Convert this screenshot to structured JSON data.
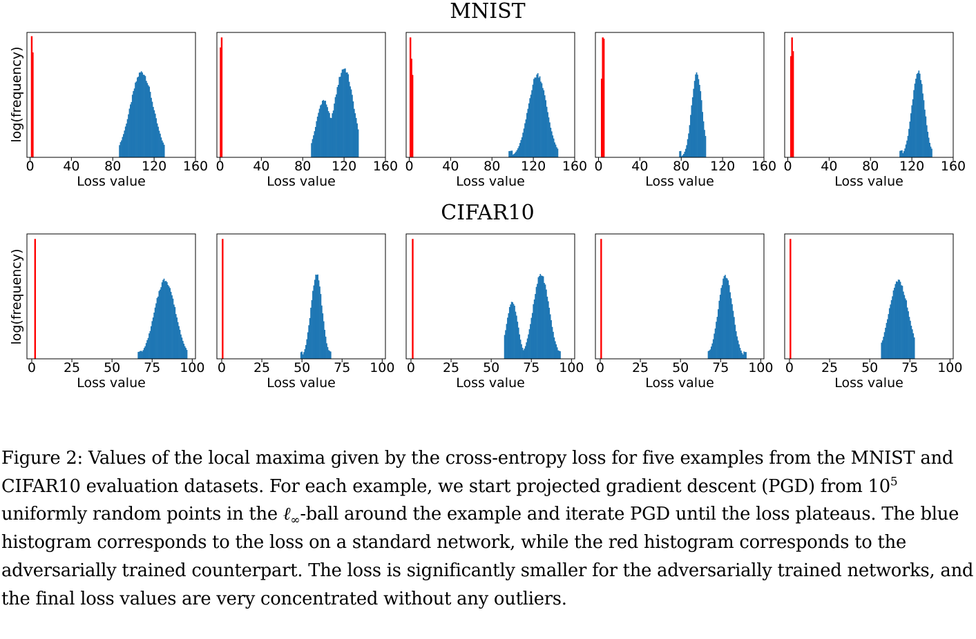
{
  "chart_data": [
    {
      "type": "bar",
      "row_title": "MNIST",
      "xlabel": "Loss value",
      "ylabel": "log(frequency)",
      "xlim": [
        -3,
        160
      ],
      "xticks": [
        0,
        40,
        80,
        120,
        160
      ],
      "panels": [
        {
          "standard": {
            "shape": "single",
            "peak": 108,
            "sd": 11,
            "min": 86,
            "max": 130,
            "height": 0.69
          },
          "adversarial": [
            {
              "x": 1.5,
              "h": 0.97
            },
            {
              "x": 2.5,
              "h": 0.84
            }
          ]
        },
        {
          "standard": {
            "shape": "double",
            "peak": 120,
            "peak2": 100,
            "sd": 9,
            "sd2": 7,
            "h2": 0.63,
            "min": 88,
            "max": 134,
            "height": 0.72
          },
          "adversarial": [
            {
              "x": 0.5,
              "h": 0.88
            },
            {
              "x": 1.5,
              "h": 0.96
            }
          ]
        },
        {
          "standard": {
            "shape": "single",
            "peak": 124,
            "sd": 9,
            "min": 96,
            "max": 144,
            "height": 0.67
          },
          "adversarial": [
            {
              "x": 1,
              "h": 0.96
            },
            {
              "x": 2,
              "h": 0.79
            },
            {
              "x": 3,
              "h": 0.66
            }
          ]
        },
        {
          "standard": {
            "shape": "single",
            "peak": 95,
            "sd": 5,
            "min": 78,
            "max": 104,
            "height": 0.69
          },
          "adversarial": [
            {
              "x": 3,
              "h": 0.63
            },
            {
              "x": 4,
              "h": 0.96
            },
            {
              "x": 5,
              "h": 0.95
            }
          ]
        },
        {
          "standard": {
            "shape": "single",
            "peak": 126,
            "sd": 6,
            "min": 108,
            "max": 140,
            "height": 0.69
          },
          "adversarial": [
            {
              "x": 3,
              "h": 0.81
            },
            {
              "x": 4,
              "h": 0.96
            },
            {
              "x": 5,
              "h": 0.85
            }
          ]
        }
      ]
    },
    {
      "type": "bar",
      "row_title": "CIFAR10",
      "xlabel": "Loss value",
      "ylabel": "log(frequency)",
      "xlim": [
        -3,
        102
      ],
      "xticks": [
        0,
        25,
        50,
        75,
        100
      ],
      "panels": [
        {
          "standard": {
            "shape": "single",
            "peak": 83,
            "sd": 6.5,
            "min": 66,
            "max": 97,
            "height": 0.64
          },
          "adversarial": [
            {
              "x": 2,
              "h": 0.96
            }
          ]
        },
        {
          "standard": {
            "shape": "single",
            "peak": 59,
            "sd": 3.5,
            "min": 49,
            "max": 68,
            "height": 0.68
          },
          "adversarial": [
            {
              "x": 0.5,
              "h": 0.96
            }
          ]
        },
        {
          "standard": {
            "shape": "double",
            "peak": 81,
            "peak2": 63,
            "sd": 5,
            "sd2": 3.5,
            "h2": 0.68,
            "min": 58,
            "max": 93,
            "height": 0.68
          },
          "adversarial": [
            {
              "x": 1,
              "h": 0.96
            }
          ]
        },
        {
          "standard": {
            "shape": "single",
            "peak": 78,
            "sd": 4.5,
            "min": 67,
            "max": 91,
            "height": 0.67
          },
          "adversarial": [
            {
              "x": 0.5,
              "h": 0.96
            }
          ]
        },
        {
          "standard": {
            "shape": "single",
            "peak": 68,
            "sd": 6,
            "min": 57,
            "max": 78,
            "height": 0.63
          },
          "adversarial": [
            {
              "x": 0.5,
              "h": 0.96
            }
          ]
        }
      ]
    }
  ],
  "colors": {
    "standard": "#1f77b4",
    "adversarial": "#ff0000"
  },
  "caption": {
    "part1": "Figure 2: Values of the local maxima given by the cross-entropy loss for five examples from the MNIST and CIFAR10 evaluation datasets. For each example, we start projected gradient descent (PGD) from 10",
    "exponent": "5",
    "part2": " uniformly random points in the ",
    "ell": "ℓ",
    "infty": "∞",
    "part3": "-ball around the example and iterate PGD until the loss plateaus. The blue histogram corresponds to the loss on a standard network, while the red histogram corresponds to the adversarially trained counterpart. The loss is significantly smaller for the adversarially trained networks, and the final loss values are very concentrated without any outliers."
  }
}
